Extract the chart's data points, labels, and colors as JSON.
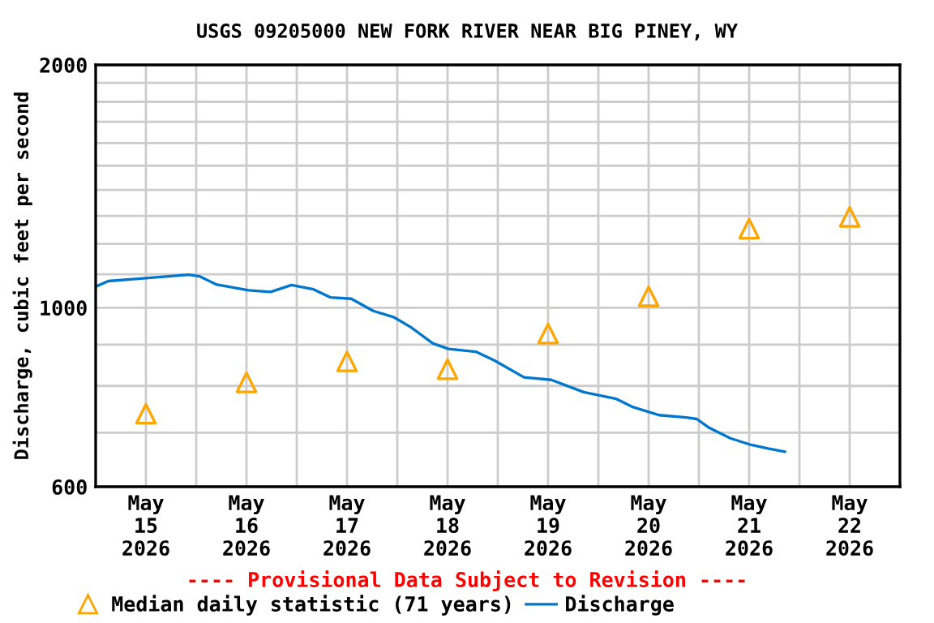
{
  "chart_data": {
    "type": "line",
    "title": "USGS 09205000 NEW FORK RIVER NEAR BIG PINEY, WY",
    "ylabel": "Discharge, cubic feet per second",
    "annotations": [
      "---- Provisional Data Subject to Revision ----"
    ],
    "log": "y",
    "grid": true,
    "legend": "bottom",
    "xlim": [
      "2026-05-15T00:00",
      "2026-05-23T00:00"
    ],
    "xticks": [
      {
        "value": "2026-05-15T12:00",
        "label": "May\n15\n2026"
      },
      {
        "value": "2026-05-16T12:00",
        "label": "May\n16\n2026"
      },
      {
        "value": "2026-05-17T12:00",
        "label": "May\n17\n2026"
      },
      {
        "value": "2026-05-18T12:00",
        "label": "May\n18\n2026"
      },
      {
        "value": "2026-05-19T12:00",
        "label": "May\n19\n2026"
      },
      {
        "value": "2026-05-20T12:00",
        "label": "May\n20\n2026"
      },
      {
        "value": "2026-05-21T12:00",
        "label": "May\n21\n2026"
      },
      {
        "value": "2026-05-22T12:00",
        "label": "May\n22\n2026"
      },
      {
        "value": "2026-05-16T00:00",
        "label": null
      },
      {
        "value": "2026-05-17T00:00",
        "label": null
      },
      {
        "value": "2026-05-18T00:00",
        "label": null
      },
      {
        "value": "2026-05-19T00:00",
        "label": null
      },
      {
        "value": "2026-05-20T00:00",
        "label": null
      },
      {
        "value": "2026-05-21T00:00",
        "label": null
      },
      {
        "value": "2026-05-22T00:00",
        "label": null
      }
    ],
    "ylim": [
      600,
      2000
    ],
    "yticks": [
      600,
      {
        "value": 700,
        "label": null
      },
      {
        "value": 800,
        "label": null
      },
      {
        "value": 900,
        "label": null
      },
      1000,
      {
        "value": 1100,
        "label": null
      },
      {
        "value": 1200,
        "label": null
      },
      {
        "value": 1300,
        "label": null
      },
      {
        "value": 1400,
        "label": null
      },
      {
        "value": 1500,
        "label": null
      },
      {
        "value": 1600,
        "label": null
      },
      {
        "value": 1700,
        "label": null
      },
      {
        "value": 1800,
        "label": null
      },
      {
        "value": 1900,
        "label": null
      },
      2000
    ],
    "series": [
      {
        "name": "Median daily statistic (71 years)",
        "type": "scatter",
        "marker": "triangle",
        "color": "#ffa500",
        "x": [
          "2026-05-15T12:00",
          "2026-05-16T12:00",
          "2026-05-17T12:00",
          "2026-05-18T12:00",
          "2026-05-19T12:00",
          "2026-05-20T12:00",
          "2026-05-21T12:00",
          "2026-05-22T12:00"
        ],
        "values": [
          739,
          808,
          858,
          839,
          929,
          1033,
          1253,
          1296
        ]
      },
      {
        "name": "Discharge",
        "color": "#0077cc",
        "x": [
          "2026-05-15T00:00",
          "2026-05-15T03:00",
          "2026-05-15T10:45",
          "2026-05-15T22:15",
          "2026-05-16T00:45",
          "2026-05-16T04:45",
          "2026-05-16T12:30",
          "2026-05-16T17:45",
          "2026-05-16T22:45",
          "2026-05-17T04:00",
          "2026-05-17T08:00",
          "2026-05-17T13:00",
          "2026-05-17T18:15",
          "2026-05-17T23:15",
          "2026-05-18T03:15",
          "2026-05-18T08:30",
          "2026-05-18T12:15",
          "2026-05-18T18:45",
          "2026-05-18T23:15",
          "2026-05-19T06:15",
          "2026-05-19T12:45",
          "2026-05-19T20:30",
          "2026-05-20T04:15",
          "2026-05-20T08:00",
          "2026-05-20T14:30",
          "2026-05-20T21:00",
          "2026-05-20T23:30",
          "2026-05-21T02:15",
          "2026-05-21T07:30",
          "2026-05-21T12:30",
          "2026-05-21T16:30",
          "2026-05-21T20:30"
        ],
        "values": [
          1062,
          1079,
          1087,
          1099,
          1094,
          1069,
          1051,
          1046,
          1067,
          1054,
          1030,
          1026,
          991,
          973,
          946,
          903,
          889,
          882,
          860,
          820,
          814,
          786,
          771,
          754,
          736,
          731,
          728,
          711,
          689,
          676,
          669,
          663
        ]
      }
    ]
  }
}
